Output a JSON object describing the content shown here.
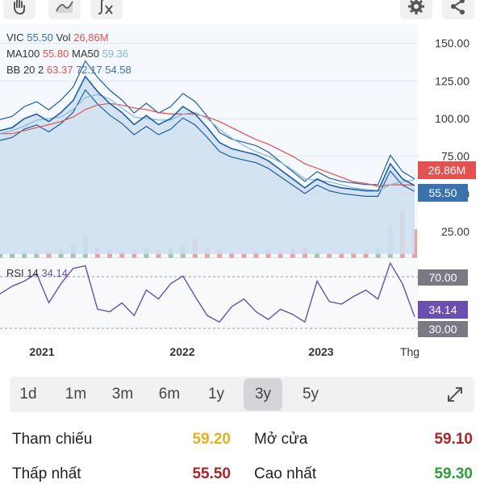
{
  "toolbar": {
    "icons": [
      "hand-drawing-icon",
      "chart-style-icon",
      "indicator-fx-icon",
      "settings-gear-icon",
      "share-icon"
    ]
  },
  "legend": {
    "symbol": "VIC",
    "price": "55.50",
    "vol_label": "Vol",
    "vol": "26,86M",
    "ma100_label": "MA100",
    "ma100": "55.80",
    "ma50_label": "MA50",
    "ma50": "59.36",
    "bb_label": "BB 20 2",
    "bb_upper": "63.37",
    "bb_mid": "72.17",
    "bb_lower": "54.58",
    "rsi_label": "RSI 14",
    "rsi": "34.14"
  },
  "axis": {
    "price_ticks": [
      "150.00",
      "125.00",
      "100.00",
      "75.00",
      "50.00",
      "25.00"
    ],
    "volume_badge": "26.86M",
    "price_badge": "55.50",
    "rsi_upper": "70.00",
    "rsi_value": "34.14",
    "rsi_lower": "30.00",
    "x_ticks": [
      "2021",
      "2022",
      "2023",
      "Thg"
    ]
  },
  "colors": {
    "price_up": "#1f5fa0",
    "area_fill": "#cfe0ef",
    "ma100": "#e0524d",
    "ma50": "#7fb9df",
    "volume_badge": "#e2524e",
    "price_badge": "#3a72ad",
    "rsi_line": "#6a4fb0",
    "rsi_badge": "#6a4fb0",
    "up_value": "#2e9e3c",
    "down_value": "#a8262a",
    "ref_value": "#e3b021"
  },
  "timeframes": [
    "1d",
    "1m",
    "3m",
    "6m",
    "1y",
    "3y",
    "5y"
  ],
  "active_timeframe": "3y",
  "stats": {
    "ref_label": "Tham chiếu",
    "ref_value": "59.20",
    "open_label": "Mở cửa",
    "open_value": "59.10",
    "low_label": "Thấp nhất",
    "low_value": "55.50",
    "high_label": "Cao nhất",
    "high_value": "59.30"
  },
  "chart_data": {
    "type": "line",
    "x": [
      "2020-11",
      "2020-12",
      "2021-01",
      "2021-02",
      "2021-03",
      "2021-04",
      "2021-05",
      "2021-06",
      "2021-07",
      "2021-08",
      "2021-09",
      "2021-10",
      "2021-11",
      "2021-12",
      "2022-01",
      "2022-02",
      "2022-03",
      "2022-04",
      "2022-05",
      "2022-06",
      "2022-07",
      "2022-08",
      "2022-09",
      "2022-10",
      "2022-11",
      "2022-12",
      "2023-01",
      "2023-02",
      "2023-03",
      "2023-04",
      "2023-05",
      "2023-06",
      "2023-07",
      "2023-08",
      "2023-09"
    ],
    "series": [
      {
        "name": "VIC",
        "values": [
          92,
          94,
          100,
          103,
          98,
          104,
          112,
          128,
          118,
          110,
          104,
          96,
          102,
          96,
          100,
          108,
          103,
          94,
          84,
          80,
          78,
          76,
          72,
          66,
          60,
          54,
          60,
          56,
          54,
          53,
          52,
          52,
          70,
          60,
          55.5
        ]
      },
      {
        "name": "MA100",
        "values": [
          90,
          90,
          92,
          94,
          96,
          98,
          101,
          106,
          109,
          110,
          109,
          107,
          106,
          104,
          103,
          103,
          103,
          101,
          98,
          94,
          90,
          86,
          83,
          79,
          75,
          70,
          67,
          64,
          61,
          58,
          57,
          55,
          56,
          56,
          55.8
        ]
      },
      {
        "name": "MA50",
        "values": [
          90,
          92,
          95,
          99,
          100,
          101,
          106,
          114,
          116,
          113,
          107,
          101,
          100,
          99,
          99,
          103,
          104,
          100,
          93,
          87,
          82,
          78,
          75,
          71,
          66,
          60,
          59,
          58,
          56,
          54,
          53,
          52,
          56,
          58,
          59.36
        ]
      }
    ],
    "volume": [
      4,
      5,
      6,
      7,
      6,
      9,
      14,
      20,
      10,
      8,
      6,
      7,
      9,
      8,
      10,
      12,
      18,
      9,
      7,
      6,
      5,
      6,
      7,
      8,
      9,
      10,
      6,
      5,
      5,
      6,
      7,
      9,
      30,
      45,
      26.86
    ],
    "rsi": [
      52,
      58,
      62,
      68,
      45,
      60,
      72,
      74,
      40,
      38,
      45,
      35,
      55,
      48,
      60,
      66,
      50,
      35,
      30,
      42,
      48,
      38,
      32,
      40,
      36,
      30,
      62,
      46,
      44,
      50,
      55,
      48,
      76,
      60,
      34.14
    ],
    "ylim": [
      10,
      160
    ],
    "rsi_lim": [
      20,
      80
    ],
    "grid": true
  }
}
